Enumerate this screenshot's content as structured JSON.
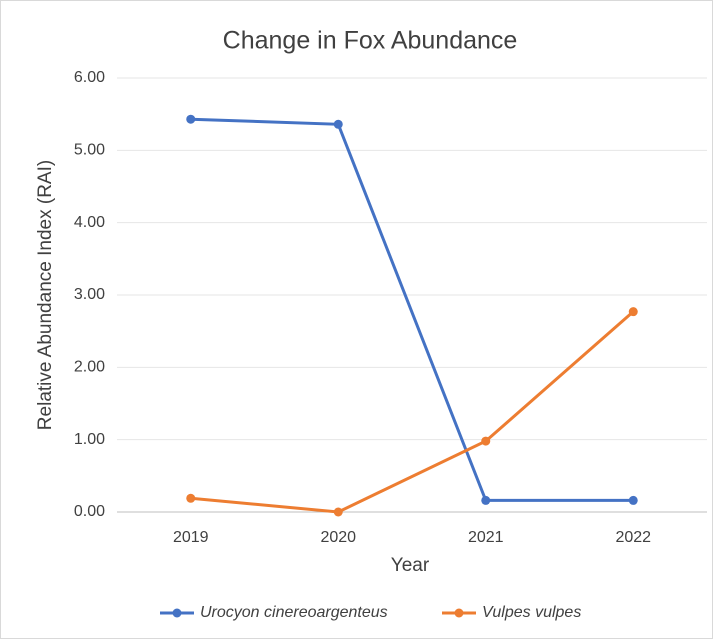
{
  "chart_data": {
    "type": "line",
    "title": "Change in Fox Abundance",
    "x_label": "Year",
    "y_label": "Relative Abundance Index (RAI)",
    "categories": [
      "2019",
      "2020",
      "2021",
      "2022"
    ],
    "series": [
      {
        "name": "Urocyon cinereoargenteus",
        "color": "#4472c4",
        "values": [
          5.43,
          5.36,
          0.16,
          0.16
        ]
      },
      {
        "name": "Vulpes vulpes",
        "color": "#ed7d31",
        "values": [
          0.19,
          0.0,
          0.98,
          2.77
        ]
      }
    ],
    "ylim": [
      0,
      6
    ],
    "yticks": [
      {
        "value": 0,
        "label": "0.00"
      },
      {
        "value": 1,
        "label": "1.00"
      },
      {
        "value": 2,
        "label": "2.00"
      },
      {
        "value": 3,
        "label": "3.00"
      },
      {
        "value": 4,
        "label": "4.00"
      },
      {
        "value": 5,
        "label": "5.00"
      },
      {
        "value": 6,
        "label": "6.00"
      }
    ],
    "grid": true,
    "legend": "bottom"
  }
}
